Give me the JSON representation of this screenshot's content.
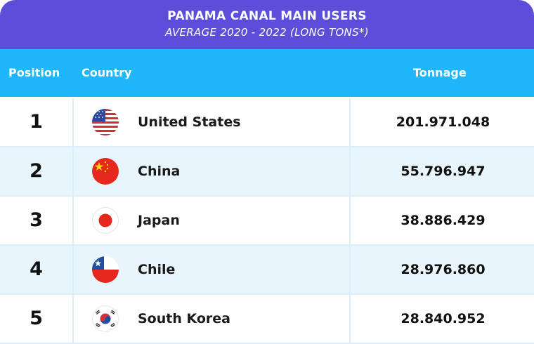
{
  "header": {
    "title": "PANAMA CANAL MAIN USERS",
    "subtitle": "AVERAGE 2020 - 2022 (LONG TONS*)"
  },
  "columns": {
    "position": "Position",
    "country": "Country",
    "tonnage": "Tonnage"
  },
  "rows": [
    {
      "rank": "1",
      "country": "United States",
      "tonnage": "201.971.048",
      "flag": "us-flag-icon"
    },
    {
      "rank": "2",
      "country": "China",
      "tonnage": "55.796.947",
      "flag": "china-flag-icon"
    },
    {
      "rank": "3",
      "country": "Japan",
      "tonnage": "38.886.429",
      "flag": "japan-flag-icon"
    },
    {
      "rank": "4",
      "country": "Chile",
      "tonnage": "28.976.860",
      "flag": "chile-flag-icon"
    },
    {
      "rank": "5",
      "country": "South Korea",
      "tonnage": "28.840.952",
      "flag": "south-korea-flag-icon"
    }
  ],
  "colors": {
    "title_bg": "#5b4fd9",
    "header_bg": "#20b6fb",
    "alt_row_bg": "#e8f5fd"
  }
}
